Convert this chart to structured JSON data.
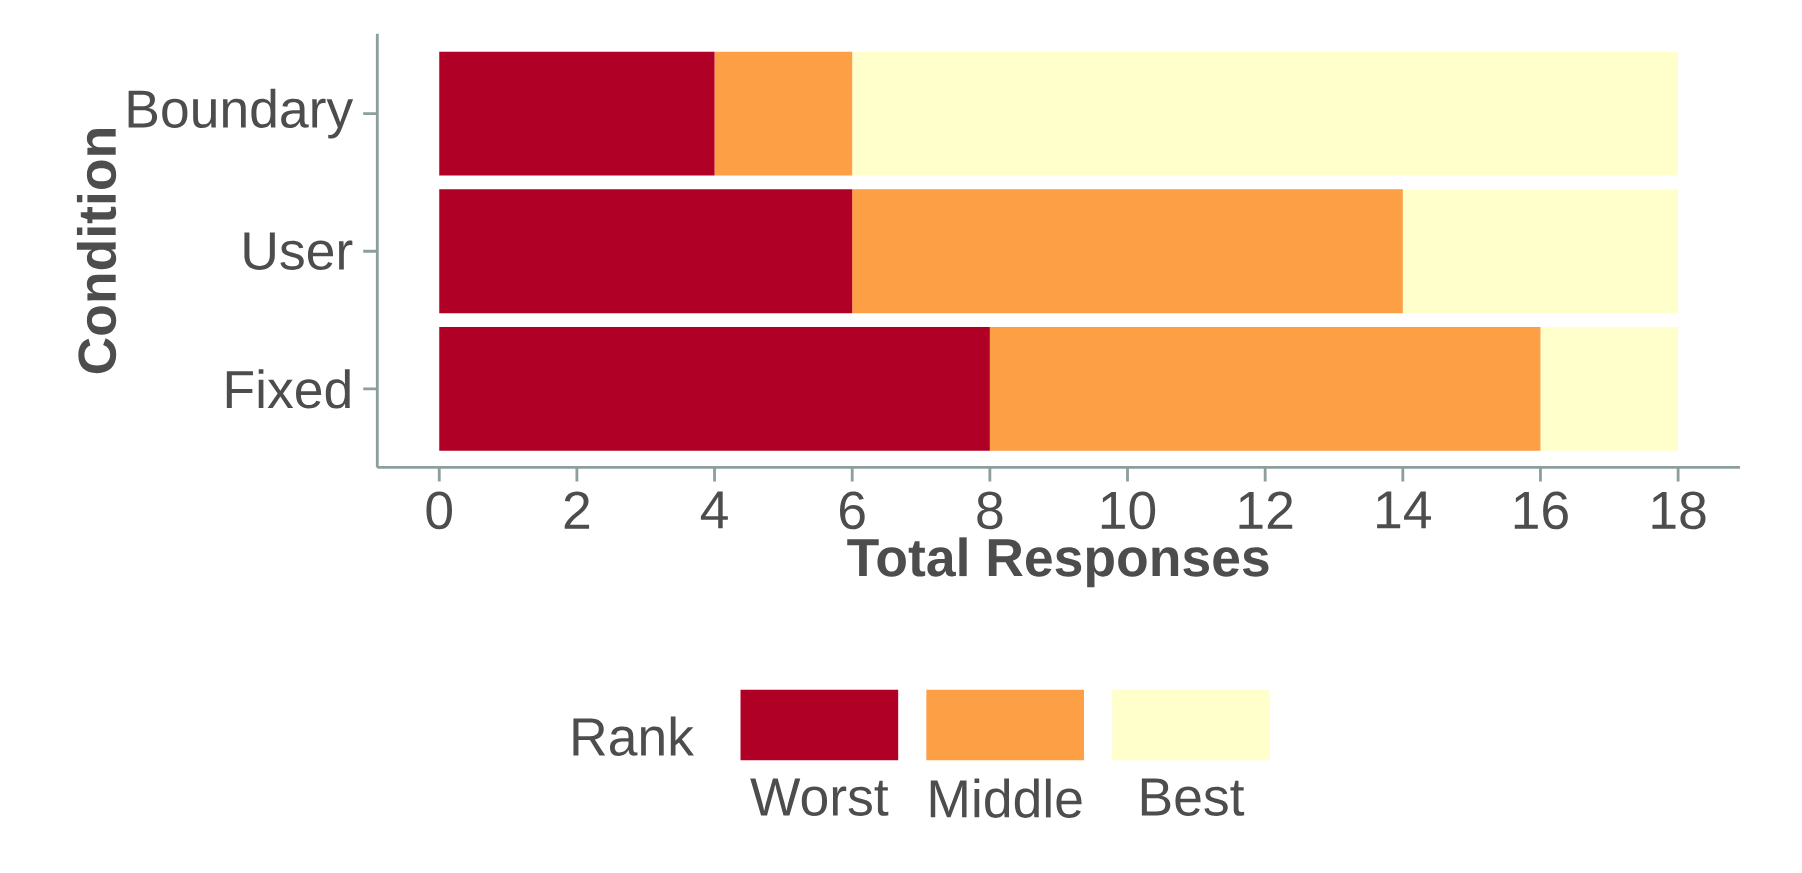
{
  "chart_data": {
    "type": "bar",
    "orientation": "horizontal",
    "stacked": true,
    "xlabel": "Total Responses",
    "ylabel": "Condition",
    "legend_title": "Rank",
    "legend": "bottom",
    "grid": false,
    "categories": [
      "Boundary",
      "User",
      "Fixed"
    ],
    "series": [
      {
        "name": "Worst",
        "color": "#b10026",
        "values": [
          4,
          6,
          8
        ]
      },
      {
        "name": "Middle",
        "color": "#fd9f44",
        "values": [
          2,
          8,
          8
        ]
      },
      {
        "name": "Best",
        "color": "#ffffcc",
        "values": [
          12,
          4,
          2
        ]
      }
    ],
    "xlim": [
      -0.9,
      18.9
    ],
    "xticks": [
      0,
      2,
      4,
      6,
      8,
      10,
      12,
      14,
      16,
      18
    ]
  }
}
